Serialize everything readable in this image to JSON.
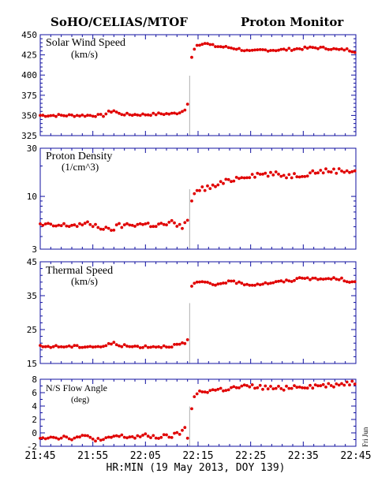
{
  "header": {
    "left": "SoHO/CELIAS/MTOF",
    "right": "Proton Monitor"
  },
  "side_label": "Fri Jun",
  "chart_data": [
    {
      "type": "scatter",
      "title": "Solar Wind Speed",
      "units": "(km/s)",
      "ylim": [
        325,
        450
      ],
      "yscale": "linear",
      "yticks": [
        325,
        350,
        375,
        400,
        425,
        450
      ],
      "yticklabels": [
        "325",
        "350",
        "375",
        "400",
        "425",
        "450"
      ],
      "marker_color": "#e00000",
      "segments": [
        {
          "start": 0,
          "end": 28,
          "anchors": [
            [
              0,
              350
            ],
            [
              5,
              350
            ],
            [
              10,
              350
            ],
            [
              12,
              350
            ],
            [
              13,
              354
            ],
            [
              14,
              356
            ],
            [
              15,
              352
            ],
            [
              17,
              351
            ],
            [
              20,
              351
            ],
            [
              23,
              352
            ],
            [
              25,
              352
            ],
            [
              26,
              353
            ],
            [
              27,
              355
            ],
            [
              27.6,
              357
            ],
            [
              28,
              364
            ]
          ]
        },
        {
          "start": 28.8,
          "end": 60,
          "anchors": [
            [
              28.8,
              422
            ],
            [
              29.5,
              436
            ],
            [
              31,
              440
            ],
            [
              33,
              436
            ],
            [
              36,
              434
            ],
            [
              38,
              432
            ],
            [
              40,
              429
            ],
            [
              42,
              431
            ],
            [
              45,
              431
            ],
            [
              48,
              432
            ],
            [
              52,
              434
            ],
            [
              55,
              433
            ],
            [
              57,
              431
            ],
            [
              58,
              432
            ],
            [
              60,
              429
            ]
          ]
        }
      ]
    },
    {
      "type": "scatter",
      "title": "Proton Density",
      "units": "(1/cm^3)",
      "ylim": [
        3,
        30
      ],
      "yscale": "log",
      "yticks": [
        3,
        10,
        30
      ],
      "yticklabels": [
        "3",
        "10",
        "30"
      ],
      "marker_color": "#e00000",
      "segments": [
        {
          "start": 0,
          "end": 28,
          "anchors": [
            [
              0,
              5.2
            ],
            [
              3,
              5.1
            ],
            [
              6,
              5.2
            ],
            [
              9,
              5.3
            ],
            [
              11,
              5.1
            ],
            [
              12,
              4.8
            ],
            [
              13,
              4.6
            ],
            [
              15,
              5.1
            ],
            [
              18,
              5.3
            ],
            [
              20,
              5.3
            ],
            [
              22,
              5.2
            ],
            [
              24,
              5.3
            ],
            [
              25,
              5.5
            ],
            [
              26,
              5.1
            ],
            [
              27,
              5
            ],
            [
              27.6,
              5.6
            ],
            [
              28,
              5.8
            ]
          ]
        },
        {
          "start": 28.8,
          "end": 60,
          "anchors": [
            [
              28.8,
              9
            ],
            [
              29.5,
              11.3
            ],
            [
              31,
              12
            ],
            [
              33,
              12.5
            ],
            [
              35,
              13.8
            ],
            [
              37,
              15
            ],
            [
              39,
              16
            ],
            [
              42,
              16.7
            ],
            [
              45,
              16.5
            ],
            [
              47,
              16
            ],
            [
              50,
              16.5
            ],
            [
              52,
              17.5
            ],
            [
              55,
              18
            ],
            [
              58,
              18
            ],
            [
              60,
              18
            ]
          ]
        }
      ]
    },
    {
      "type": "scatter",
      "title": "Thermal Speed",
      "units": "(km/s)",
      "ylim": [
        15,
        45
      ],
      "yscale": "linear",
      "yticks": [
        15,
        25,
        35,
        45
      ],
      "yticklabels": [
        "15",
        "25",
        "35",
        "45"
      ],
      "marker_color": "#e00000",
      "segments": [
        {
          "start": 0,
          "end": 28,
          "anchors": [
            [
              0,
              20
            ],
            [
              5,
              20
            ],
            [
              10,
              20
            ],
            [
              12,
              20
            ],
            [
              13,
              20.6
            ],
            [
              14,
              21
            ],
            [
              15,
              20.4
            ],
            [
              17,
              20
            ],
            [
              20,
              20
            ],
            [
              23,
              20
            ],
            [
              25,
              20.2
            ],
            [
              26,
              20.5
            ],
            [
              27,
              20.8
            ],
            [
              27.6,
              20.9
            ],
            [
              28,
              22
            ]
          ]
        },
        {
          "start": 28.8,
          "end": 60,
          "anchors": [
            [
              28.8,
              37.8
            ],
            [
              29.5,
              39
            ],
            [
              31,
              39
            ],
            [
              33,
              38
            ],
            [
              35,
              39
            ],
            [
              37,
              39
            ],
            [
              40,
              38.2
            ],
            [
              42,
              38.5
            ],
            [
              45,
              39
            ],
            [
              48,
              39.5
            ],
            [
              50,
              40.5
            ],
            [
              52,
              39.8
            ],
            [
              55,
              40
            ],
            [
              57,
              40
            ],
            [
              58,
              39.5
            ],
            [
              60,
              38.8
            ]
          ]
        }
      ]
    },
    {
      "type": "scatter",
      "title": "N/S Flow Angle",
      "units": "(deg)",
      "ylim": [
        -2,
        8
      ],
      "yscale": "linear",
      "yticks": [
        -2,
        0,
        2,
        4,
        6,
        8
      ],
      "yticklabels": [
        "-2",
        "0",
        "2",
        "4",
        "6",
        "8"
      ],
      "marker_color": "#e00000",
      "segments": [
        {
          "start": 0,
          "end": 28,
          "anchors": [
            [
              0,
              -0.6
            ],
            [
              3,
              -0.6
            ],
            [
              6,
              -0.7
            ],
            [
              9,
              -0.6
            ],
            [
              11,
              -1
            ],
            [
              12,
              -1.2
            ],
            [
              14,
              -0.5
            ],
            [
              16,
              -0.6
            ],
            [
              18,
              -0.6
            ],
            [
              20,
              -0.5
            ],
            [
              22,
              -0.6
            ],
            [
              24,
              -0.6
            ],
            [
              26,
              -0.3
            ],
            [
              27,
              0.3
            ],
            [
              27.6,
              0.9
            ],
            [
              28,
              -0.8
            ]
          ]
        },
        {
          "start": 28.8,
          "end": 60,
          "anchors": [
            [
              28.8,
              3.6
            ],
            [
              29.3,
              5.4
            ],
            [
              30,
              6
            ],
            [
              32,
              6.3
            ],
            [
              35,
              6.5
            ],
            [
              38,
              6.8
            ],
            [
              40,
              6.9
            ],
            [
              42,
              6.8
            ],
            [
              45,
              6.6
            ],
            [
              48,
              6.9
            ],
            [
              52,
              7
            ],
            [
              55,
              7.1
            ],
            [
              57,
              7.3
            ],
            [
              58,
              7.4
            ],
            [
              60,
              7.5
            ]
          ]
        }
      ]
    }
  ],
  "x_axis": {
    "label": "HR:MIN (19 May 2013, DOY 139)",
    "range_minutes": [
      0,
      60
    ],
    "ticks_minutes": [
      0,
      10,
      20,
      30,
      40,
      50,
      60
    ],
    "ticklabels": [
      "21:45",
      "21:55",
      "22:05",
      "22:15",
      "22:25",
      "22:35",
      "22:45"
    ],
    "data_gap_at_minutes": 28.4
  }
}
